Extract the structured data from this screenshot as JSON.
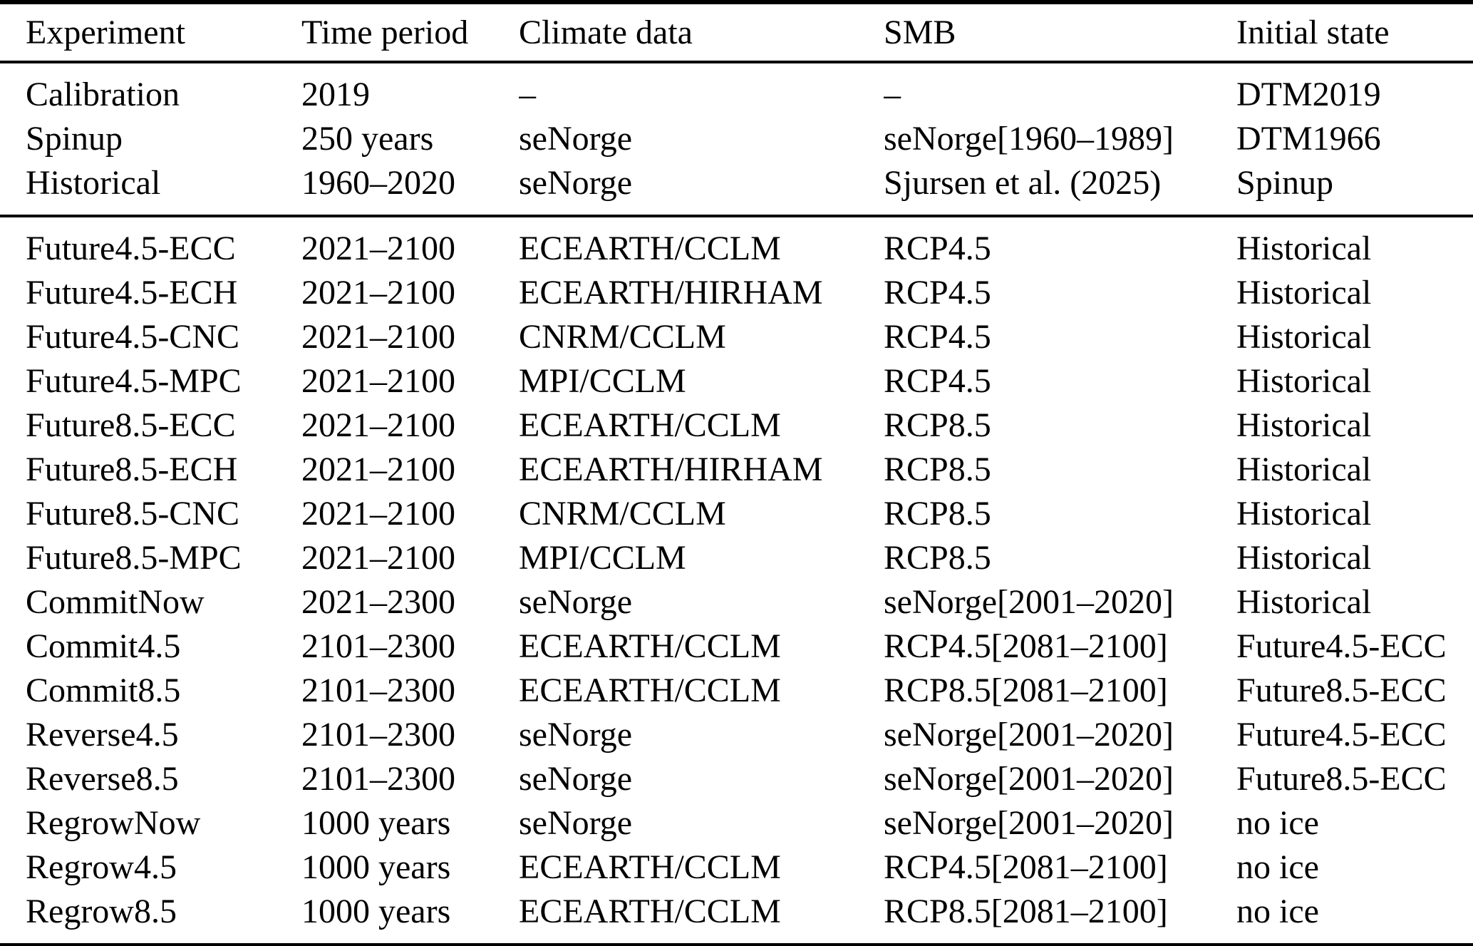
{
  "page": {
    "background_color": "#ffffff",
    "text_color": "#000000"
  },
  "table": {
    "columns": [
      "Experiment",
      "Time period",
      "Climate data",
      "SMB",
      "Initial state"
    ],
    "groups": [
      {
        "name": "setup-experiments",
        "rows": [
          [
            "Calibration",
            "2019",
            "–",
            "–",
            "DTM2019"
          ],
          [
            "Spinup",
            "250 years",
            "seNorge",
            "seNorge[1960–1989]",
            "DTM1966"
          ],
          [
            "Historical",
            "1960–2020",
            "seNorge",
            "Sjursen et al. (2025)",
            "Spinup"
          ]
        ]
      },
      {
        "name": "scenario-experiments",
        "rows": [
          [
            "Future4.5-ECC",
            "2021–2100",
            "ECEARTH/CCLM",
            "RCP4.5",
            "Historical"
          ],
          [
            "Future4.5-ECH",
            "2021–2100",
            "ECEARTH/HIRHAM",
            "RCP4.5",
            "Historical"
          ],
          [
            "Future4.5-CNC",
            "2021–2100",
            "CNRM/CCLM",
            "RCP4.5",
            "Historical"
          ],
          [
            "Future4.5-MPC",
            "2021–2100",
            "MPI/CCLM",
            "RCP4.5",
            "Historical"
          ],
          [
            "Future8.5-ECC",
            "2021–2100",
            "ECEARTH/CCLM",
            "RCP8.5",
            "Historical"
          ],
          [
            "Future8.5-ECH",
            "2021–2100",
            "ECEARTH/HIRHAM",
            "RCP8.5",
            "Historical"
          ],
          [
            "Future8.5-CNC",
            "2021–2100",
            "CNRM/CCLM",
            "RCP8.5",
            "Historical"
          ],
          [
            "Future8.5-MPC",
            "2021–2100",
            "MPI/CCLM",
            "RCP8.5",
            "Historical"
          ],
          [
            "CommitNow",
            "2021–2300",
            "seNorge",
            "seNorge[2001–2020]",
            "Historical"
          ],
          [
            "Commit4.5",
            "2101–2300",
            "ECEARTH/CCLM",
            "RCP4.5[2081–2100]",
            "Future4.5-ECC"
          ],
          [
            "Commit8.5",
            "2101–2300",
            "ECEARTH/CCLM",
            "RCP8.5[2081–2100]",
            "Future8.5-ECC"
          ],
          [
            "Reverse4.5",
            "2101–2300",
            "seNorge",
            "seNorge[2001–2020]",
            "Future4.5-ECC"
          ],
          [
            "Reverse8.5",
            "2101–2300",
            "seNorge",
            "seNorge[2001–2020]",
            "Future8.5-ECC"
          ],
          [
            "RegrowNow",
            "1000 years",
            "seNorge",
            "seNorge[2001–2020]",
            "no ice"
          ],
          [
            "Regrow4.5",
            "1000 years",
            "ECEARTH/CCLM",
            "RCP4.5[2081–2100]",
            "no ice"
          ],
          [
            "Regrow8.5",
            "1000 years",
            "ECEARTH/CCLM",
            "RCP8.5[2081–2100]",
            "no ice"
          ]
        ]
      }
    ]
  }
}
